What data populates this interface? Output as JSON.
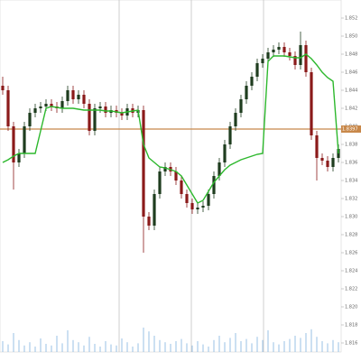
{
  "chart_data": {
    "type": "candlestick",
    "open": [
      1.8445,
      1.844,
      1.84,
      1.836,
      1.837,
      1.84,
      1.8415,
      1.842,
      1.8422,
      1.8425,
      1.8422,
      1.842,
      1.8428,
      1.844,
      1.843,
      1.8435,
      1.8425,
      1.8395,
      1.842,
      1.8422,
      1.8415,
      1.8418,
      1.8415,
      1.8412,
      1.842,
      1.8415,
      1.8418,
      1.83,
      1.829,
      1.8325,
      1.835,
      1.8355,
      1.835,
      1.834,
      1.8325,
      1.8315,
      1.8308,
      1.831,
      1.8312,
      1.8325,
      1.8345,
      1.836,
      1.838,
      1.84,
      1.8415,
      1.843,
      1.8445,
      1.8455,
      1.847,
      1.8475,
      1.8482,
      1.8485,
      1.8488,
      1.8482,
      1.8478,
      1.8468,
      1.849,
      1.846,
      1.839,
      1.8365,
      1.8362,
      1.8355,
      1.8365
    ],
    "high": [
      1.8455,
      1.8445,
      1.8405,
      1.8375,
      1.8405,
      1.842,
      1.8425,
      1.8427,
      1.843,
      1.843,
      1.8427,
      1.8433,
      1.8445,
      1.8445,
      1.844,
      1.844,
      1.843,
      1.8425,
      1.8427,
      1.8427,
      1.8423,
      1.8423,
      1.842,
      1.8425,
      1.8425,
      1.8423,
      1.8423,
      1.8305,
      1.833,
      1.8355,
      1.836,
      1.836,
      1.8355,
      1.8345,
      1.833,
      1.832,
      1.8315,
      1.8317,
      1.833,
      1.835,
      1.8365,
      1.8385,
      1.8405,
      1.842,
      1.8435,
      1.845,
      1.846,
      1.8475,
      1.848,
      1.8487,
      1.849,
      1.8493,
      1.8493,
      1.8487,
      1.8483,
      1.8505,
      1.8495,
      1.8465,
      1.8395,
      1.837,
      1.8367,
      1.837,
      1.838
    ],
    "low": [
      1.8435,
      1.8395,
      1.833,
      1.8355,
      1.8365,
      1.8395,
      1.841,
      1.8415,
      1.8417,
      1.8417,
      1.8415,
      1.8415,
      1.8423,
      1.8425,
      1.8425,
      1.842,
      1.839,
      1.839,
      1.8415,
      1.841,
      1.841,
      1.841,
      1.8407,
      1.8407,
      1.841,
      1.841,
      1.826,
      1.8285,
      1.8285,
      1.832,
      1.8345,
      1.8345,
      1.8335,
      1.832,
      1.831,
      1.8303,
      1.8303,
      1.8305,
      1.8307,
      1.832,
      1.834,
      1.8355,
      1.8375,
      1.8395,
      1.841,
      1.8425,
      1.844,
      1.845,
      1.8465,
      1.847,
      1.8477,
      1.848,
      1.8477,
      1.8473,
      1.8463,
      1.8463,
      1.8455,
      1.8385,
      1.834,
      1.8357,
      1.835,
      1.835,
      1.836
    ],
    "close": [
      1.844,
      1.84,
      1.836,
      1.837,
      1.84,
      1.8415,
      1.842,
      1.8422,
      1.8425,
      1.8422,
      1.842,
      1.8428,
      1.844,
      1.843,
      1.8435,
      1.8425,
      1.8395,
      1.842,
      1.8422,
      1.8415,
      1.8418,
      1.8415,
      1.8412,
      1.842,
      1.8415,
      1.8418,
      1.83,
      1.829,
      1.8325,
      1.835,
      1.8355,
      1.835,
      1.834,
      1.8325,
      1.8315,
      1.8308,
      1.831,
      1.8312,
      1.8325,
      1.8345,
      1.836,
      1.838,
      1.84,
      1.8415,
      1.843,
      1.8445,
      1.8455,
      1.847,
      1.8475,
      1.8482,
      1.8485,
      1.8488,
      1.8482,
      1.8478,
      1.8468,
      1.849,
      1.846,
      1.839,
      1.8365,
      1.8362,
      1.8355,
      1.8365,
      1.8375
    ],
    "up_color": "#1f3d1f",
    "down_color": "#8b1a1a",
    "line": {
      "color": "#2db82d",
      "values": [
        1.836,
        1.8363,
        1.8367,
        1.837,
        1.837,
        1.837,
        1.837,
        1.8395,
        1.842,
        1.8422,
        1.8421,
        1.842,
        1.842,
        1.842,
        1.8419,
        1.8418,
        1.8418,
        1.8418,
        1.8418,
        1.8417,
        1.8417,
        1.8416,
        1.8415,
        1.8416,
        1.8417,
        1.8418,
        1.838,
        1.8365,
        1.836,
        1.8355,
        1.8354,
        1.8352,
        1.835,
        1.8345,
        1.8335,
        1.8325,
        1.8315,
        1.8318,
        1.8328,
        1.8338,
        1.8345,
        1.8352,
        1.8357,
        1.836,
        1.8363,
        1.8365,
        1.8367,
        1.8369,
        1.837,
        1.8472,
        1.8478,
        1.8478,
        1.8478,
        1.8477,
        1.8476,
        1.8476,
        1.848,
        1.8475,
        1.8468,
        1.846,
        1.8454,
        1.845,
        1.837
      ]
    },
    "price_line": {
      "value": 1.8397,
      "color": "#c8884a"
    },
    "volume": {
      "color": "#7fb3e0",
      "values": [
        20,
        14,
        35,
        22,
        12,
        18,
        10,
        25,
        15,
        12,
        30,
        16,
        40,
        22,
        18,
        12,
        28,
        15,
        10,
        20,
        14,
        12,
        25,
        18,
        10,
        16,
        45,
        38,
        30,
        22,
        18,
        15,
        20,
        24,
        16,
        12,
        20,
        14,
        10,
        22,
        30,
        18,
        26,
        35,
        20,
        24,
        16,
        28,
        22,
        40,
        18,
        14,
        20,
        24,
        30,
        26,
        35,
        42,
        28,
        20,
        16,
        22,
        18
      ],
      "ylim": [
        0,
        100
      ]
    },
    "ylim": [
      1.815,
      1.854
    ],
    "yticks": [
      1.816,
      1.818,
      {
        "value": 1.82,
        "label": "1.820"
      },
      1.822,
      1.824,
      1.826,
      1.828,
      {
        "value": 1.83,
        "label": "1.830"
      },
      1.832,
      1.834,
      1.836,
      1.838,
      {
        "value": 1.84,
        "label": "1.840"
      },
      1.842,
      1.844,
      1.846,
      1.848,
      {
        "value": 1.85,
        "label": "1.850"
      },
      1.852
    ]
  }
}
